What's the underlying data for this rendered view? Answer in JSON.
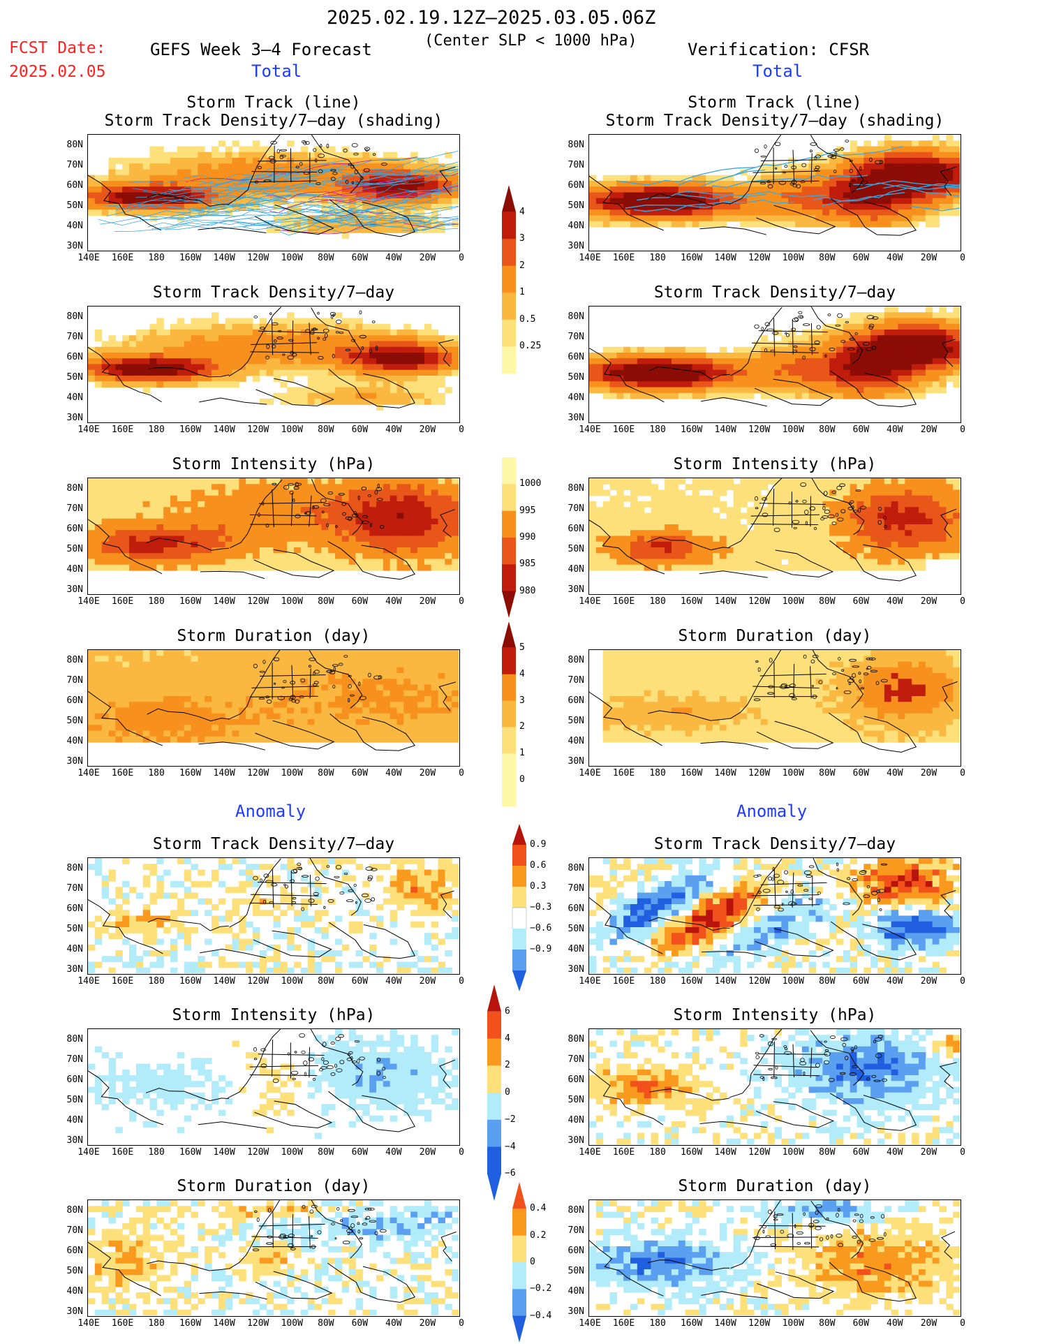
{
  "header": {
    "date_range": "2025.02.19.12Z–2025.03.05.06Z",
    "subtitle": "(Center SLP < 1000 hPa)",
    "fcst_label": "FCST Date:",
    "fcst_date": "2025.02.05",
    "model_label": "GEFS Week 3–4 Forecast",
    "verification_label": "Verification: CFSR"
  },
  "sections": {
    "total_left": "Total",
    "total_right": "Total",
    "anomaly_left": "Anomaly",
    "anomaly_right": "Anomaly"
  },
  "panel_titles": {
    "track_line": "Storm Track (line)",
    "track_shading": "Storm Track Density/7–day (shading)",
    "density": "Storm Track Density/7–day",
    "intensity": "Storm Intensity (hPa)",
    "duration": "Storm Duration (day)"
  },
  "axes": {
    "lat_labels": [
      "80N",
      "70N",
      "60N",
      "50N",
      "40N",
      "30N"
    ],
    "lon_labels": [
      "140E",
      "160E",
      "180",
      "160W",
      "140W",
      "120W",
      "100W",
      "80W",
      "60W",
      "40W",
      "20W",
      "0"
    ]
  },
  "colorbars": {
    "density_total": [
      "4",
      "3",
      "2",
      "1",
      "0.5",
      "0.25"
    ],
    "intensity_total": [
      "1000",
      "995",
      "990",
      "985",
      "980"
    ],
    "duration_total": [
      "5",
      "4",
      "3",
      "2",
      "1",
      "0"
    ],
    "density_anom": [
      "0.9",
      "0.6",
      "0.3",
      "−0.3",
      "−0.6",
      "−0.9"
    ],
    "intensity_anom": [
      "6",
      "4",
      "2",
      "0",
      "−2",
      "−4",
      "−6"
    ],
    "duration_anom": [
      "0.4",
      "0.2",
      "0",
      "−0.2",
      "−0.4"
    ]
  },
  "colors": {
    "seq": [
      "#fff7a8",
      "#fde07a",
      "#fbb840",
      "#f7901d",
      "#e8561a",
      "#c01d0d",
      "#8c0d05"
    ],
    "div": [
      "#1f5fe0",
      "#5a9ff0",
      "#b2ecfa",
      "#ffffff",
      "#fde07a",
      "#f99a1f",
      "#f2511c",
      "#b8140b"
    ],
    "track": "#3ba7e0",
    "track_center": "#c01d8a"
  }
}
